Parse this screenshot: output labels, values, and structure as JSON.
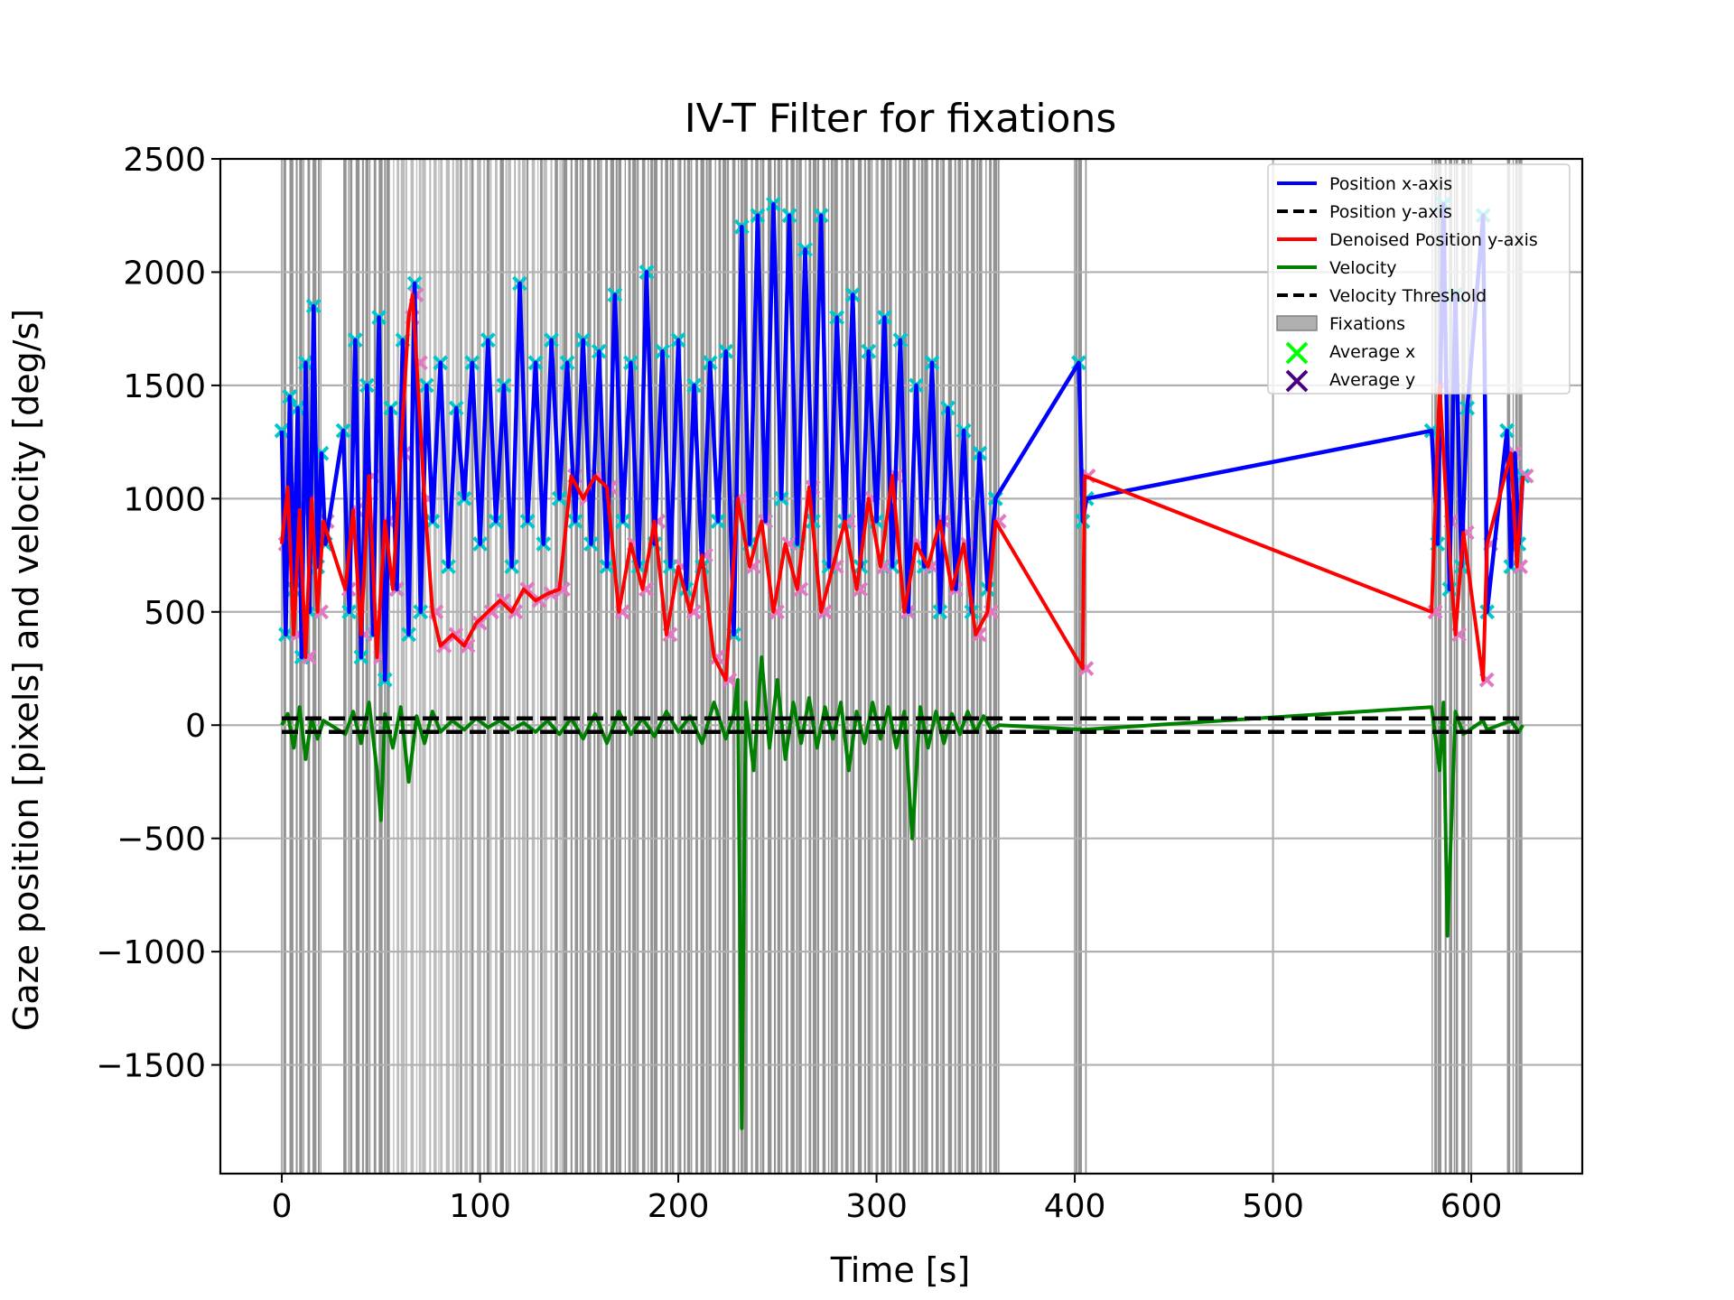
{
  "chart_data": {
    "type": "line",
    "title": "IV-T Filter for fixations",
    "xlabel": "Time [s]",
    "ylabel": "Gaze position [pixels] and velocity [deg/s]",
    "xlim": [
      -31,
      656
    ],
    "ylim": [
      -1980,
      2500
    ],
    "xticks": [
      0,
      100,
      200,
      300,
      400,
      500,
      600
    ],
    "xtick_labels": [
      "0",
      "100",
      "200",
      "300",
      "400",
      "500",
      "600"
    ],
    "yticks": [
      -1500,
      -1000,
      -500,
      0,
      500,
      1000,
      1500,
      2000,
      2500
    ],
    "ytick_labels": [
      "−1500",
      "−1000",
      "−500",
      "0",
      "500",
      "1000",
      "1500",
      "2000",
      "2500"
    ],
    "grid": true,
    "legend_position": "top-right",
    "colors": {
      "position_x": "#0000ff",
      "position_y": "#000000",
      "denoised_y": "#ff0000",
      "velocity": "#008000",
      "threshold": "#000000",
      "fixation_band": "#808080",
      "fixation_band_light": "#b0b0b0",
      "avg_x_marker": "#00c8c8",
      "avg_x_legend": "#00ff00",
      "avg_y_marker": "#e377c2",
      "avg_y_legend": "#4b0082",
      "grid": "#b0b0b0"
    },
    "legend": [
      {
        "label": "Position x-axis",
        "style": "solid-line",
        "color": "#0000ff"
      },
      {
        "label": "Position y-axis",
        "style": "dashed-line",
        "color": "#000000"
      },
      {
        "label": "Denoised Position y-axis",
        "style": "solid-line",
        "color": "#ff0000"
      },
      {
        "label": "Velocity",
        "style": "solid-line",
        "color": "#008000"
      },
      {
        "label": "Velocity Threshold",
        "style": "dashed-line",
        "color": "#000000"
      },
      {
        "label": "Fixations",
        "style": "patch",
        "color": "#b0b0b0"
      },
      {
        "label": "Average x",
        "style": "x-marker",
        "color": "#00ff00"
      },
      {
        "label": "Average y",
        "style": "x-marker",
        "color": "#4b0082"
      }
    ],
    "velocity_threshold": [
      30,
      -30
    ],
    "fixation_regions": [
      [
        0,
        20
      ],
      [
        31,
        90
      ],
      [
        90,
        142
      ],
      [
        142,
        362
      ],
      [
        400,
        406
      ],
      [
        580,
        600
      ],
      [
        618,
        627
      ]
    ],
    "series": [
      {
        "name": "Position x-axis",
        "x": [
          0,
          2,
          4,
          6,
          8,
          10,
          12,
          14,
          16,
          18,
          20,
          22,
          31,
          34,
          37,
          40,
          43,
          46,
          49,
          52,
          55,
          58,
          61,
          64,
          67,
          70,
          73,
          76,
          80,
          84,
          88,
          92,
          96,
          100,
          104,
          108,
          112,
          116,
          120,
          124,
          128,
          132,
          136,
          140,
          144,
          148,
          152,
          156,
          160,
          164,
          168,
          172,
          176,
          180,
          184,
          188,
          192,
          196,
          200,
          204,
          208,
          212,
          216,
          220,
          224,
          228,
          232,
          236,
          240,
          244,
          248,
          252,
          256,
          260,
          264,
          268,
          272,
          276,
          280,
          284,
          288,
          292,
          296,
          300,
          304,
          308,
          312,
          316,
          320,
          324,
          328,
          332,
          336,
          340,
          344,
          348,
          352,
          356,
          360,
          402,
          404,
          406,
          580,
          583,
          586,
          589,
          592,
          595,
          598,
          606,
          608,
          618,
          620,
          622,
          624,
          626
        ],
        "y": [
          1300,
          400,
          1450,
          600,
          1400,
          300,
          1600,
          500,
          1850,
          700,
          1200,
          800,
          1300,
          500,
          1700,
          300,
          1500,
          400,
          1800,
          200,
          1400,
          600,
          1700,
          400,
          1950,
          500,
          1500,
          900,
          1600,
          700,
          1400,
          1000,
          1600,
          800,
          1700,
          900,
          1500,
          700,
          1950,
          900,
          1600,
          800,
          1700,
          1000,
          1600,
          900,
          1700,
          800,
          1650,
          700,
          1900,
          900,
          1600,
          700,
          2000,
          800,
          1650,
          700,
          1700,
          600,
          1500,
          700,
          1600,
          900,
          1650,
          400,
          2200,
          800,
          2250,
          900,
          2300,
          1000,
          2250,
          800,
          2100,
          900,
          2250,
          700,
          1800,
          900,
          1900,
          700,
          1650,
          900,
          1800,
          700,
          1700,
          500,
          1500,
          700,
          1600,
          500,
          1400,
          600,
          1300,
          500,
          1200,
          600,
          1000,
          1600,
          900,
          1000,
          1300,
          800,
          2300,
          600,
          1900,
          700,
          1400,
          2250,
          500,
          1300,
          700,
          1200,
          800,
          1100
        ],
        "color": "#0000ff"
      },
      {
        "name": "Denoised Position y-axis",
        "x": [
          0,
          3,
          6,
          9,
          12,
          15,
          18,
          21,
          32,
          36,
          40,
          44,
          48,
          52,
          56,
          60,
          64,
          66,
          68,
          72,
          76,
          80,
          86,
          92,
          98,
          104,
          110,
          116,
          122,
          128,
          134,
          140,
          146,
          152,
          158,
          164,
          170,
          176,
          182,
          188,
          194,
          200,
          206,
          212,
          218,
          224,
          230,
          236,
          242,
          248,
          254,
          260,
          266,
          272,
          278,
          284,
          290,
          296,
          302,
          308,
          314,
          320,
          326,
          332,
          338,
          344,
          350,
          356,
          360,
          404,
          405,
          580,
          584,
          588,
          592,
          596,
          606,
          608,
          620,
          623,
          626
        ],
        "y": [
          800,
          1050,
          400,
          950,
          300,
          1000,
          500,
          900,
          600,
          950,
          400,
          1100,
          300,
          900,
          600,
          1200,
          1800,
          1900,
          1600,
          1000,
          500,
          350,
          400,
          350,
          450,
          500,
          550,
          500,
          600,
          550,
          580,
          600,
          1100,
          1000,
          1100,
          1050,
          500,
          800,
          600,
          900,
          400,
          700,
          500,
          750,
          300,
          200,
          1000,
          700,
          900,
          500,
          800,
          600,
          1050,
          500,
          700,
          900,
          600,
          1000,
          700,
          1100,
          500,
          800,
          700,
          900,
          600,
          800,
          400,
          500,
          900,
          250,
          1100,
          500,
          1500,
          900,
          400,
          850,
          200,
          800,
          1200,
          700,
          1100
        ],
        "color": "#ff0000"
      },
      {
        "name": "Velocity",
        "x": [
          0,
          3,
          6,
          9,
          12,
          15,
          18,
          21,
          32,
          36,
          40,
          44,
          48,
          50,
          52,
          56,
          60,
          64,
          68,
          72,
          76,
          80,
          86,
          92,
          98,
          104,
          110,
          116,
          122,
          128,
          134,
          140,
          146,
          152,
          158,
          164,
          170,
          176,
          182,
          188,
          194,
          200,
          206,
          212,
          218,
          224,
          228,
          230,
          232,
          234,
          238,
          242,
          246,
          250,
          254,
          258,
          262,
          266,
          270,
          274,
          278,
          282,
          286,
          290,
          294,
          298,
          302,
          306,
          310,
          314,
          318,
          322,
          326,
          330,
          334,
          338,
          342,
          346,
          350,
          354,
          358,
          362,
          404,
          580,
          584,
          586,
          588,
          592,
          596,
          606,
          608,
          620,
          624,
          626
        ],
        "y": [
          0,
          50,
          -100,
          80,
          -150,
          30,
          -60,
          20,
          -40,
          60,
          -80,
          100,
          -200,
          -420,
          50,
          -100,
          80,
          -250,
          40,
          -80,
          60,
          -30,
          20,
          -20,
          30,
          -10,
          20,
          -20,
          10,
          -30,
          20,
          -40,
          30,
          -60,
          50,
          -80,
          60,
          -40,
          30,
          -50,
          60,
          -30,
          40,
          -80,
          100,
          -60,
          50,
          200,
          -1780,
          100,
          -200,
          300,
          -100,
          200,
          -150,
          100,
          -80,
          120,
          -100,
          80,
          -60,
          100,
          -200,
          60,
          -80,
          100,
          -60,
          80,
          -100,
          60,
          -500,
          80,
          -100,
          60,
          -80,
          50,
          -40,
          60,
          -30,
          40,
          -20,
          0,
          -20,
          80,
          -200,
          100,
          -930,
          60,
          -40,
          20,
          -20,
          20,
          -30,
          0
        ],
        "color": "#008000"
      }
    ]
  }
}
